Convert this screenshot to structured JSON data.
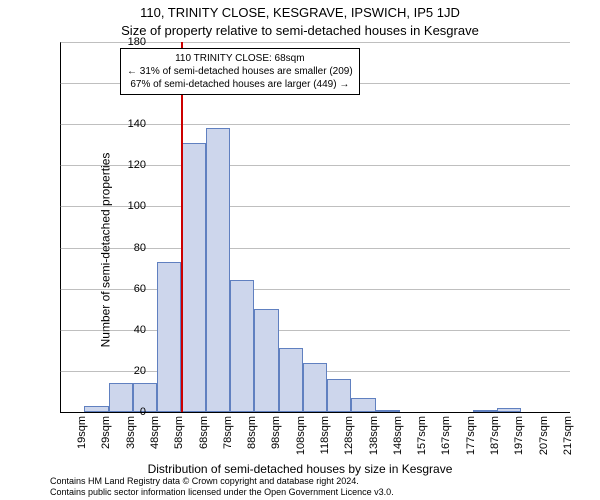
{
  "title_main": "110, TRINITY CLOSE, KESGRAVE, IPSWICH, IP5 1JD",
  "title_sub": "Size of property relative to semi-detached houses in Kesgrave",
  "y_label": "Number of semi-detached properties",
  "x_label": "Distribution of semi-detached houses by size in Kesgrave",
  "footer_line1": "Contains HM Land Registry data © Crown copyright and database right 2024.",
  "footer_line2": "Contains public sector information licensed under the Open Government Licence v3.0.",
  "annotation": {
    "line1": "110 TRINITY CLOSE: 68sqm",
    "line2": "← 31% of semi-detached houses are smaller (209)",
    "line3": "67% of semi-detached houses are larger (449) →"
  },
  "chart": {
    "type": "histogram",
    "ylim": [
      0,
      180
    ],
    "ytick_step": 20,
    "yticks": [
      0,
      20,
      40,
      60,
      80,
      100,
      120,
      140,
      160,
      180
    ],
    "categories": [
      "19sqm",
      "29sqm",
      "38sqm",
      "48sqm",
      "58sqm",
      "68sqm",
      "78sqm",
      "88sqm",
      "98sqm",
      "108sqm",
      "118sqm",
      "128sqm",
      "138sqm",
      "148sqm",
      "157sqm",
      "167sqm",
      "177sqm",
      "187sqm",
      "197sqm",
      "207sqm",
      "217sqm"
    ],
    "values": [
      0,
      3,
      14,
      14,
      73,
      131,
      138,
      64,
      50,
      31,
      24,
      16,
      7,
      1,
      0,
      0,
      0,
      1,
      2,
      0,
      0
    ],
    "bar_fill": "#cdd6ec",
    "bar_border": "#6080c0",
    "grid_color": "#808080",
    "background_color": "#ffffff",
    "vline_x_category": "68sqm",
    "vline_color": "#cc0000"
  }
}
